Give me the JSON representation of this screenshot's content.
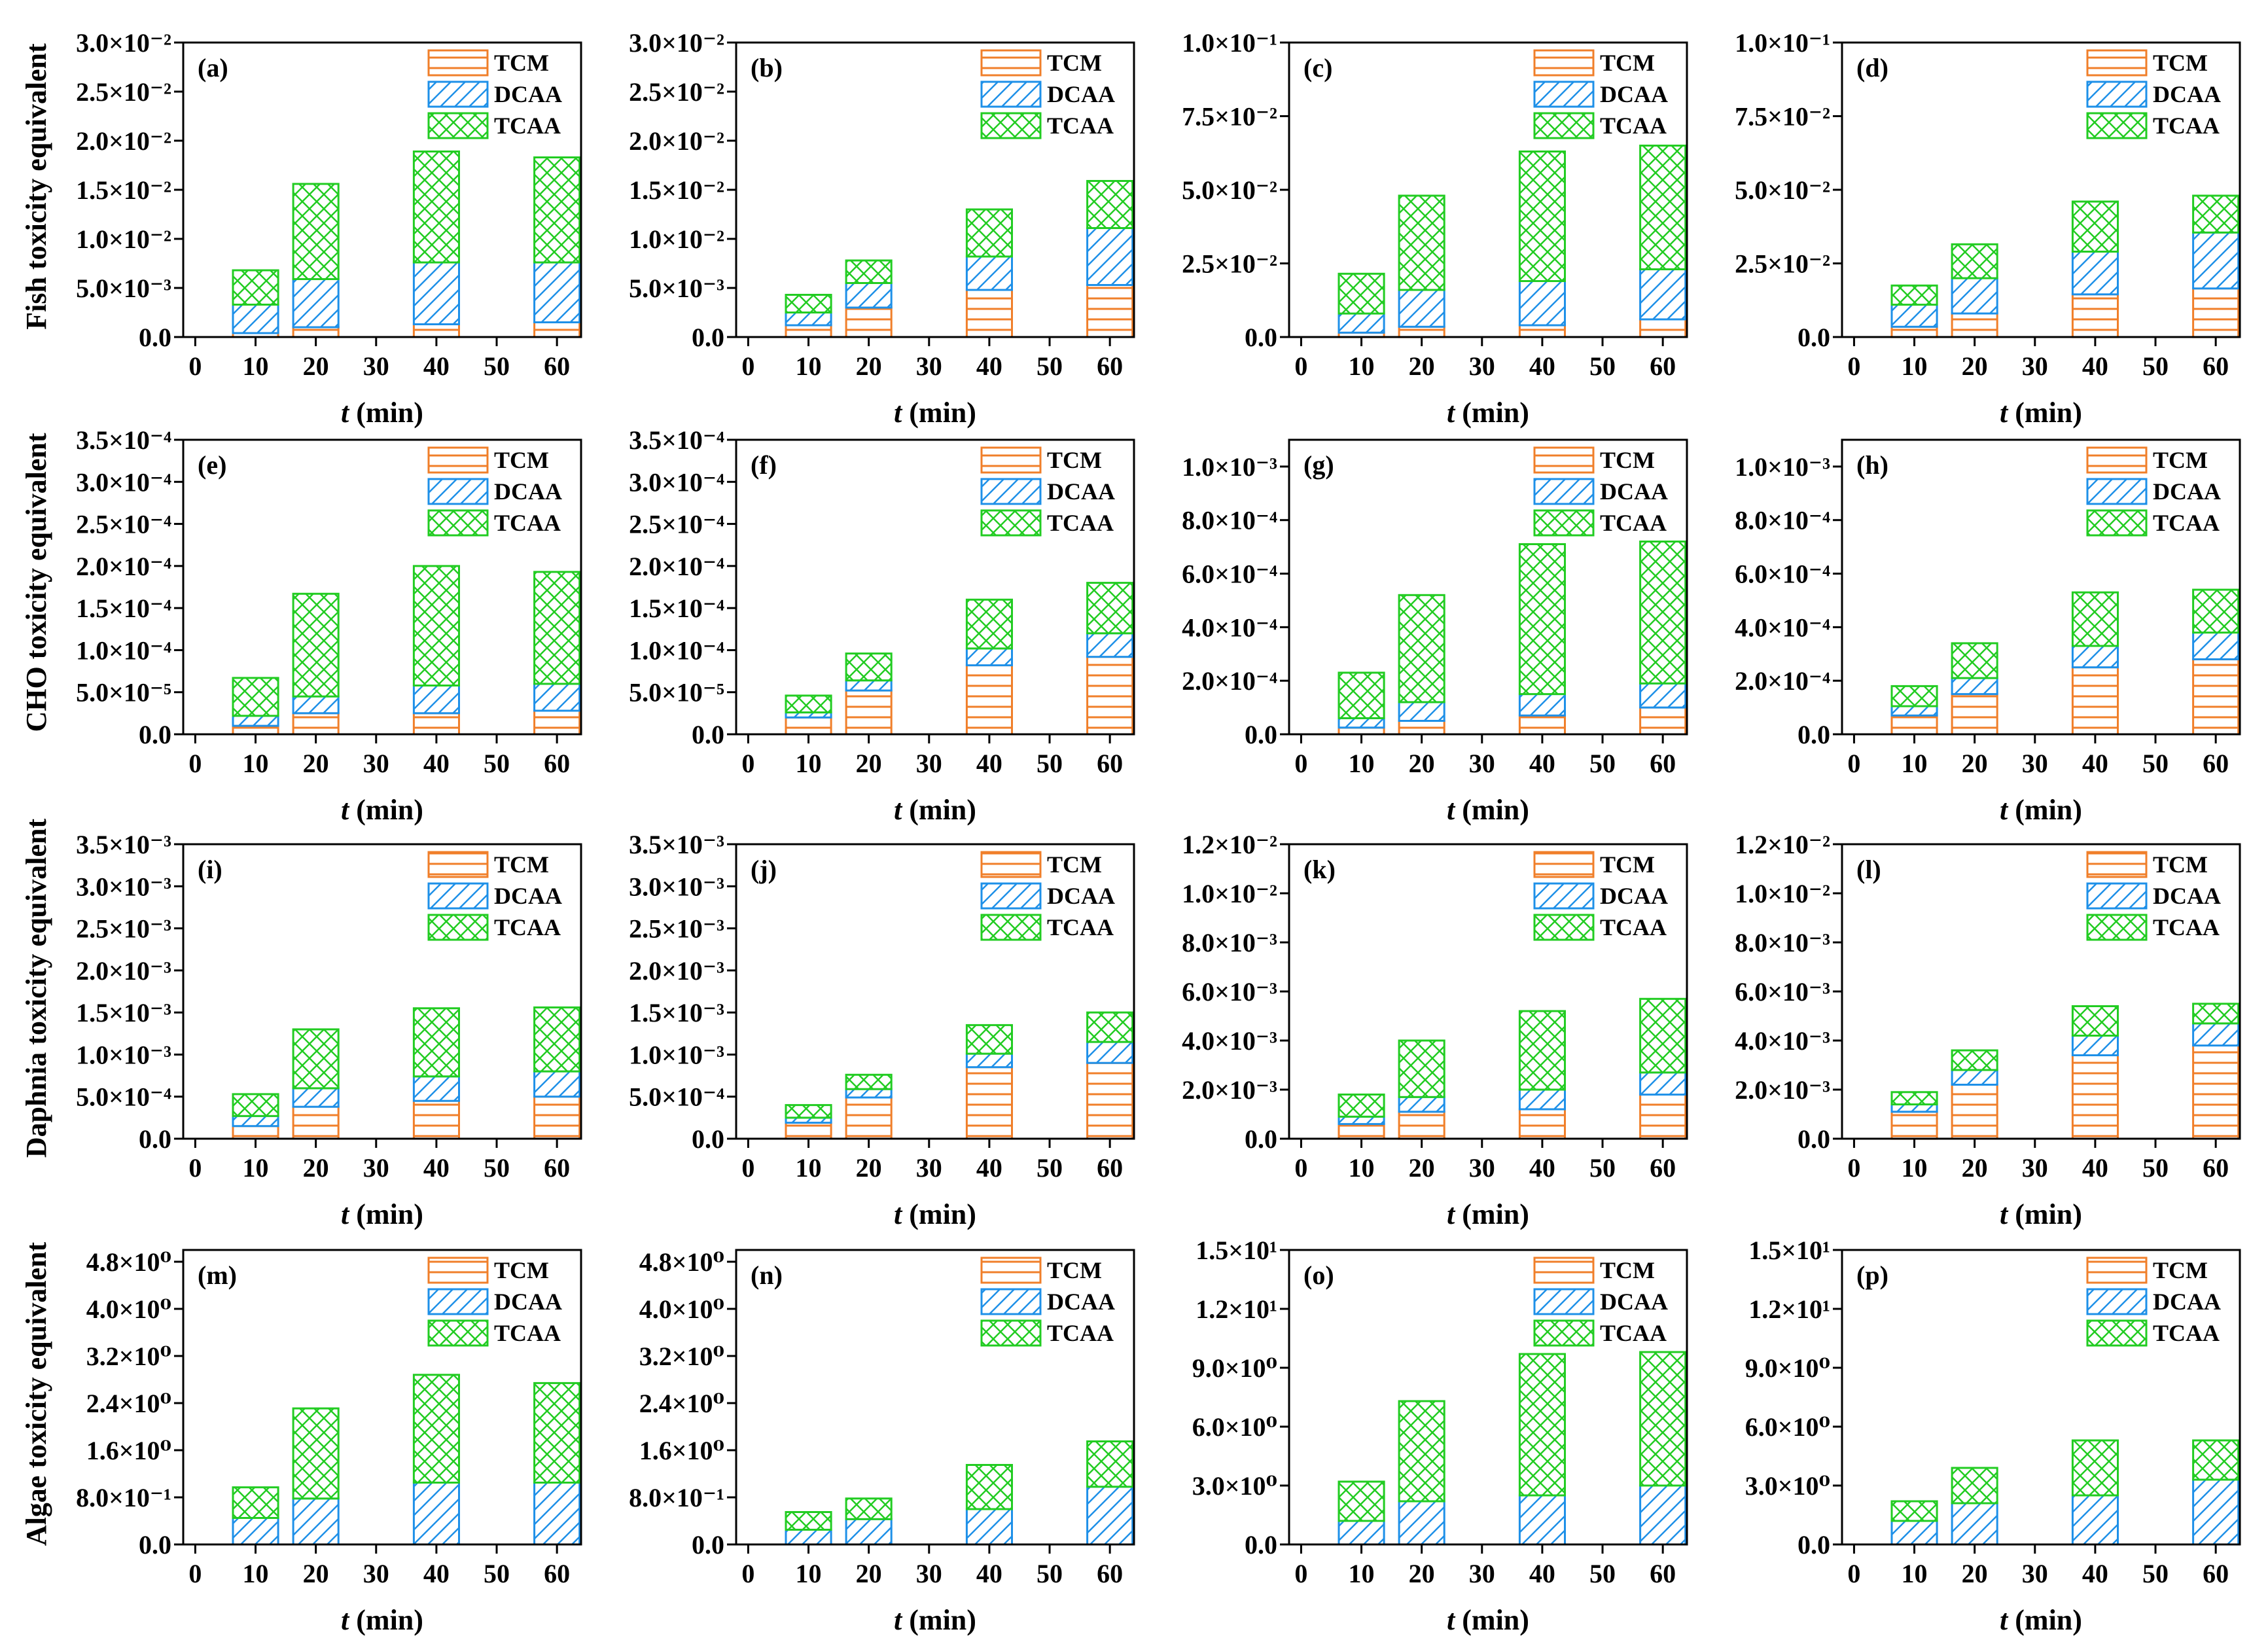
{
  "figure": {
    "row_titles": [
      "Fish toxicity equivalent",
      "CHO toxicity equivalent",
      "Daphnia toxicity equivalent",
      "Algae toxicity equivalent"
    ],
    "x_axis_label_italic": "t",
    "x_axis_label_unit": " (min)",
    "legend_labels": [
      "TCM",
      "DCAA",
      "TCAA"
    ]
  },
  "colors": {
    "tcm": "#f07f2a",
    "dcaa": "#1e90e8",
    "tcaa": "#22cc22",
    "axis": "#000000"
  },
  "chart_data": [
    {
      "panel": "(a)",
      "type": "bar",
      "stacked": true,
      "x": [
        10,
        20,
        40,
        60
      ],
      "xticks": [
        0,
        10,
        20,
        30,
        40,
        50,
        60
      ],
      "xlim": [
        -2,
        64
      ],
      "ylim": [
        0,
        0.03
      ],
      "yticks": [
        0,
        0.005,
        0.01,
        0.015,
        0.02,
        0.025,
        0.03
      ],
      "ytick_labels": [
        "0.0",
        "5.0×10⁻³",
        "1.0×10⁻²",
        "1.5×10⁻²",
        "2.0×10⁻²",
        "2.5×10⁻²",
        "3.0×10⁻²"
      ],
      "series": [
        {
          "name": "TCM",
          "values": [
            0.0004,
            0.001,
            0.0013,
            0.0015
          ]
        },
        {
          "name": "DCAA",
          "values": [
            0.0029,
            0.0049,
            0.0063,
            0.0061
          ]
        },
        {
          "name": "TCAA",
          "values": [
            0.0035,
            0.0097,
            0.0113,
            0.0107
          ]
        }
      ]
    },
    {
      "panel": "(b)",
      "type": "bar",
      "stacked": true,
      "x": [
        10,
        20,
        40,
        60
      ],
      "xticks": [
        0,
        10,
        20,
        30,
        40,
        50,
        60
      ],
      "xlim": [
        -2,
        64
      ],
      "ylim": [
        0,
        0.03
      ],
      "yticks": [
        0,
        0.005,
        0.01,
        0.015,
        0.02,
        0.025,
        0.03
      ],
      "ytick_labels": [
        "0.0",
        "5.0×10⁻³",
        "1.0×10⁻²",
        "1.5×10⁻²",
        "2.0×10⁻²",
        "2.5×10⁻²",
        "3.0×10⁻²"
      ],
      "series": [
        {
          "name": "TCM",
          "values": [
            0.0012,
            0.003,
            0.0048,
            0.0053
          ]
        },
        {
          "name": "DCAA",
          "values": [
            0.0013,
            0.0025,
            0.0034,
            0.0058
          ]
        },
        {
          "name": "TCAA",
          "values": [
            0.0018,
            0.0023,
            0.0048,
            0.0048
          ]
        }
      ]
    },
    {
      "panel": "(c)",
      "type": "bar",
      "stacked": true,
      "x": [
        10,
        20,
        40,
        60
      ],
      "xticks": [
        0,
        10,
        20,
        30,
        40,
        50,
        60
      ],
      "xlim": [
        -2,
        64
      ],
      "ylim": [
        0,
        0.1
      ],
      "yticks": [
        0,
        0.025,
        0.05,
        0.075,
        0.1
      ],
      "ytick_labels": [
        "0.0",
        "2.5×10⁻²",
        "5.0×10⁻²",
        "7.5×10⁻²",
        "1.0×10⁻¹"
      ],
      "series": [
        {
          "name": "TCM",
          "values": [
            0.0015,
            0.0035,
            0.004,
            0.006
          ]
        },
        {
          "name": "DCAA",
          "values": [
            0.0065,
            0.0125,
            0.015,
            0.017
          ]
        },
        {
          "name": "TCAA",
          "values": [
            0.0135,
            0.032,
            0.044,
            0.042
          ]
        }
      ]
    },
    {
      "panel": "(d)",
      "type": "bar",
      "stacked": true,
      "x": [
        10,
        20,
        40,
        60
      ],
      "xticks": [
        0,
        10,
        20,
        30,
        40,
        50,
        60
      ],
      "xlim": [
        -2,
        64
      ],
      "ylim": [
        0,
        0.1
      ],
      "yticks": [
        0,
        0.025,
        0.05,
        0.075,
        0.1
      ],
      "ytick_labels": [
        "0.0",
        "2.5×10⁻²",
        "5.0×10⁻²",
        "7.5×10⁻²",
        "1.0×10⁻¹"
      ],
      "series": [
        {
          "name": "TCM",
          "values": [
            0.0035,
            0.008,
            0.0145,
            0.0165
          ]
        },
        {
          "name": "DCAA",
          "values": [
            0.0075,
            0.012,
            0.0145,
            0.019
          ]
        },
        {
          "name": "TCAA",
          "values": [
            0.0065,
            0.0115,
            0.017,
            0.0125
          ]
        }
      ]
    },
    {
      "panel": "(e)",
      "type": "bar",
      "stacked": true,
      "x": [
        10,
        20,
        40,
        60
      ],
      "xticks": [
        0,
        10,
        20,
        30,
        40,
        50,
        60
      ],
      "xlim": [
        -2,
        64
      ],
      "ylim": [
        0,
        0.00035
      ],
      "yticks": [
        0,
        5e-05,
        0.0001,
        0.00015,
        0.0002,
        0.00025,
        0.0003,
        0.00035
      ],
      "ytick_labels": [
        "0.0",
        "5.0×10⁻⁵",
        "1.0×10⁻⁴",
        "1.5×10⁻⁴",
        "2.0×10⁻⁴",
        "2.5×10⁻⁴",
        "3.0×10⁻⁴",
        "3.5×10⁻⁴"
      ],
      "series": [
        {
          "name": "TCM",
          "values": [
            1e-05,
            2.5e-05,
            2.5e-05,
            2.8e-05
          ]
        },
        {
          "name": "DCAA",
          "values": [
            1.2e-05,
            2e-05,
            3.3e-05,
            3.2e-05
          ]
        },
        {
          "name": "TCAA",
          "values": [
            4.5e-05,
            0.000122,
            0.000142,
            0.000133
          ]
        }
      ]
    },
    {
      "panel": "(f)",
      "type": "bar",
      "stacked": true,
      "x": [
        10,
        20,
        40,
        60
      ],
      "xticks": [
        0,
        10,
        20,
        30,
        40,
        50,
        60
      ],
      "xlim": [
        -2,
        64
      ],
      "ylim": [
        0,
        0.00035
      ],
      "yticks": [
        0,
        5e-05,
        0.0001,
        0.00015,
        0.0002,
        0.00025,
        0.0003,
        0.00035
      ],
      "ytick_labels": [
        "0.0",
        "5.0×10⁻⁵",
        "1.0×10⁻⁴",
        "1.5×10⁻⁴",
        "2.0×10⁻⁴",
        "2.5×10⁻⁴",
        "3.0×10⁻⁴",
        "3.5×10⁻⁴"
      ],
      "series": [
        {
          "name": "TCM",
          "values": [
            2e-05,
            5.2e-05,
            8.2e-05,
            9.2e-05
          ]
        },
        {
          "name": "DCAA",
          "values": [
            6e-06,
            1.2e-05,
            2e-05,
            2.8e-05
          ]
        },
        {
          "name": "TCAA",
          "values": [
            2e-05,
            3.2e-05,
            5.8e-05,
            6e-05
          ]
        }
      ]
    },
    {
      "panel": "(g)",
      "type": "bar",
      "stacked": true,
      "x": [
        10,
        20,
        40,
        60
      ],
      "xticks": [
        0,
        10,
        20,
        30,
        40,
        50,
        60
      ],
      "xlim": [
        -2,
        64
      ],
      "ylim": [
        0,
        0.0011
      ],
      "yticks": [
        0,
        0.0002,
        0.0004,
        0.0006,
        0.0008,
        0.001
      ],
      "ytick_labels": [
        "0.0",
        "2.0×10⁻⁴",
        "4.0×10⁻⁴",
        "6.0×10⁻⁴",
        "8.0×10⁻⁴",
        "1.0×10⁻³"
      ],
      "series": [
        {
          "name": "TCM",
          "values": [
            2.5e-05,
            5e-05,
            7e-05,
            0.0001
          ]
        },
        {
          "name": "DCAA",
          "values": [
            3.5e-05,
            7e-05,
            8e-05,
            9e-05
          ]
        },
        {
          "name": "TCAA",
          "values": [
            0.00017,
            0.0004,
            0.00056,
            0.00053
          ]
        }
      ]
    },
    {
      "panel": "(h)",
      "type": "bar",
      "stacked": true,
      "x": [
        10,
        20,
        40,
        60
      ],
      "xticks": [
        0,
        10,
        20,
        30,
        40,
        50,
        60
      ],
      "xlim": [
        -2,
        64
      ],
      "ylim": [
        0,
        0.0011
      ],
      "yticks": [
        0,
        0.0002,
        0.0004,
        0.0006,
        0.0008,
        0.001
      ],
      "ytick_labels": [
        "0.0",
        "2.0×10⁻⁴",
        "4.0×10⁻⁴",
        "6.0×10⁻⁴",
        "8.0×10⁻⁴",
        "1.0×10⁻³"
      ],
      "series": [
        {
          "name": "TCM",
          "values": [
            7e-05,
            0.00015,
            0.00025,
            0.00028
          ]
        },
        {
          "name": "DCAA",
          "values": [
            3.5e-05,
            6e-05,
            8e-05,
            0.0001
          ]
        },
        {
          "name": "TCAA",
          "values": [
            7.5e-05,
            0.00013,
            0.0002,
            0.00016
          ]
        }
      ]
    },
    {
      "panel": "(i)",
      "type": "bar",
      "stacked": true,
      "x": [
        10,
        20,
        40,
        60
      ],
      "xticks": [
        0,
        10,
        20,
        30,
        40,
        50,
        60
      ],
      "xlim": [
        -2,
        64
      ],
      "ylim": [
        0,
        0.0035
      ],
      "yticks": [
        0,
        0.0005,
        0.001,
        0.0015,
        0.002,
        0.0025,
        0.003,
        0.0035
      ],
      "ytick_labels": [
        "0.0",
        "5.0×10⁻⁴",
        "1.0×10⁻³",
        "1.5×10⁻³",
        "2.0×10⁻³",
        "2.5×10⁻³",
        "3.0×10⁻³",
        "3.5×10⁻³"
      ],
      "series": [
        {
          "name": "TCM",
          "values": [
            0.00015,
            0.00038,
            0.00045,
            0.0005
          ]
        },
        {
          "name": "DCAA",
          "values": [
            0.00012,
            0.00022,
            0.00029,
            0.0003
          ]
        },
        {
          "name": "TCAA",
          "values": [
            0.00026,
            0.0007,
            0.00081,
            0.00076
          ]
        }
      ]
    },
    {
      "panel": "(j)",
      "type": "bar",
      "stacked": true,
      "x": [
        10,
        20,
        40,
        60
      ],
      "xticks": [
        0,
        10,
        20,
        30,
        40,
        50,
        60
      ],
      "xlim": [
        -2,
        64
      ],
      "ylim": [
        0,
        0.0035
      ],
      "yticks": [
        0,
        0.0005,
        0.001,
        0.0015,
        0.002,
        0.0025,
        0.003,
        0.0035
      ],
      "ytick_labels": [
        "0.0",
        "5.0×10⁻⁴",
        "1.0×10⁻³",
        "1.5×10⁻³",
        "2.0×10⁻³",
        "2.5×10⁻³",
        "3.0×10⁻³",
        "3.5×10⁻³"
      ],
      "series": [
        {
          "name": "TCM",
          "values": [
            0.00019,
            0.00049,
            0.00085,
            0.0009
          ]
        },
        {
          "name": "DCAA",
          "values": [
            6e-05,
            0.0001,
            0.00016,
            0.00025
          ]
        },
        {
          "name": "TCAA",
          "values": [
            0.00015,
            0.00017,
            0.00034,
            0.00035
          ]
        }
      ]
    },
    {
      "panel": "(k)",
      "type": "bar",
      "stacked": true,
      "x": [
        10,
        20,
        40,
        60
      ],
      "xticks": [
        0,
        10,
        20,
        30,
        40,
        50,
        60
      ],
      "xlim": [
        -2,
        64
      ],
      "ylim": [
        0,
        0.012
      ],
      "yticks": [
        0,
        0.002,
        0.004,
        0.006,
        0.008,
        0.01,
        0.012
      ],
      "ytick_labels": [
        "0.0",
        "2.0×10⁻³",
        "4.0×10⁻³",
        "6.0×10⁻³",
        "8.0×10⁻³",
        "1.0×10⁻²",
        "1.2×10⁻²"
      ],
      "series": [
        {
          "name": "TCM",
          "values": [
            0.0006,
            0.0011,
            0.0012,
            0.0018
          ]
        },
        {
          "name": "DCAA",
          "values": [
            0.0003,
            0.0006,
            0.0008,
            0.0009
          ]
        },
        {
          "name": "TCAA",
          "values": [
            0.0009,
            0.0023,
            0.0032,
            0.003
          ]
        }
      ]
    },
    {
      "panel": "(l)",
      "type": "bar",
      "stacked": true,
      "x": [
        10,
        20,
        40,
        60
      ],
      "xticks": [
        0,
        10,
        20,
        30,
        40,
        50,
        60
      ],
      "xlim": [
        -2,
        64
      ],
      "ylim": [
        0,
        0.012
      ],
      "yticks": [
        0,
        0.002,
        0.004,
        0.006,
        0.008,
        0.01,
        0.012
      ],
      "ytick_labels": [
        "0.0",
        "2.0×10⁻³",
        "4.0×10⁻³",
        "6.0×10⁻³",
        "8.0×10⁻³",
        "1.0×10⁻²",
        "1.2×10⁻²"
      ],
      "series": [
        {
          "name": "TCM",
          "values": [
            0.0011,
            0.0022,
            0.0034,
            0.0038
          ]
        },
        {
          "name": "DCAA",
          "values": [
            0.0003,
            0.0006,
            0.0008,
            0.0009
          ]
        },
        {
          "name": "TCAA",
          "values": [
            0.0005,
            0.0008,
            0.0012,
            0.0008
          ]
        }
      ]
    },
    {
      "panel": "(m)",
      "type": "bar",
      "stacked": true,
      "x": [
        10,
        20,
        40,
        60
      ],
      "xticks": [
        0,
        10,
        20,
        30,
        40,
        50,
        60
      ],
      "xlim": [
        -2,
        64
      ],
      "ylim": [
        0,
        5.0
      ],
      "yticks": [
        0,
        0.8,
        1.6,
        2.4,
        3.2,
        4.0,
        4.8
      ],
      "ytick_labels": [
        "0.0",
        "8.0×10⁻¹",
        "1.6×10⁰",
        "2.4×10⁰",
        "3.2×10⁰",
        "4.0×10⁰",
        "4.8×10⁰"
      ],
      "series": [
        {
          "name": "TCM",
          "values": [
            0,
            0,
            0,
            0
          ]
        },
        {
          "name": "DCAA",
          "values": [
            0.45,
            0.78,
            1.05,
            1.05
          ]
        },
        {
          "name": "TCAA",
          "values": [
            0.52,
            1.53,
            1.83,
            1.69
          ]
        }
      ]
    },
    {
      "panel": "(n)",
      "type": "bar",
      "stacked": true,
      "x": [
        10,
        20,
        40,
        60
      ],
      "xticks": [
        0,
        10,
        20,
        30,
        40,
        50,
        60
      ],
      "xlim": [
        -2,
        64
      ],
      "ylim": [
        0,
        5.0
      ],
      "yticks": [
        0,
        0.8,
        1.6,
        2.4,
        3.2,
        4.0,
        4.8
      ],
      "ytick_labels": [
        "0.0",
        "8.0×10⁻¹",
        "1.6×10⁰",
        "2.4×10⁰",
        "3.2×10⁰",
        "4.0×10⁰",
        "4.8×10⁰"
      ],
      "series": [
        {
          "name": "TCM",
          "values": [
            0,
            0,
            0,
            0
          ]
        },
        {
          "name": "DCAA",
          "values": [
            0.25,
            0.43,
            0.6,
            0.98
          ]
        },
        {
          "name": "TCAA",
          "values": [
            0.3,
            0.35,
            0.75,
            0.77
          ]
        }
      ]
    },
    {
      "panel": "(o)",
      "type": "bar",
      "stacked": true,
      "x": [
        10,
        20,
        40,
        60
      ],
      "xticks": [
        0,
        10,
        20,
        30,
        40,
        50,
        60
      ],
      "xlim": [
        -2,
        64
      ],
      "ylim": [
        0,
        15
      ],
      "yticks": [
        0,
        3,
        6,
        9,
        12,
        15
      ],
      "ytick_labels": [
        "0.0",
        "3.0×10⁰",
        "6.0×10⁰",
        "9.0×10⁰",
        "1.2×10¹",
        "1.5×10¹"
      ],
      "series": [
        {
          "name": "TCM",
          "values": [
            0,
            0,
            0,
            0
          ]
        },
        {
          "name": "DCAA",
          "values": [
            1.2,
            2.2,
            2.5,
            3.0
          ]
        },
        {
          "name": "TCAA",
          "values": [
            2.0,
            5.1,
            7.2,
            6.8
          ]
        }
      ]
    },
    {
      "panel": "(p)",
      "type": "bar",
      "stacked": true,
      "x": [
        10,
        20,
        40,
        60
      ],
      "xticks": [
        0,
        10,
        20,
        30,
        40,
        50,
        60
      ],
      "xlim": [
        -2,
        64
      ],
      "ylim": [
        0,
        15
      ],
      "yticks": [
        0,
        3,
        6,
        9,
        12,
        15
      ],
      "ytick_labels": [
        "0.0",
        "3.0×10⁰",
        "6.0×10⁰",
        "9.0×10⁰",
        "1.2×10¹",
        "1.5×10¹"
      ],
      "series": [
        {
          "name": "TCM",
          "values": [
            0,
            0,
            0,
            0
          ]
        },
        {
          "name": "DCAA",
          "values": [
            1.2,
            2.1,
            2.5,
            3.3
          ]
        },
        {
          "name": "TCAA",
          "values": [
            1.0,
            1.8,
            2.8,
            2.0
          ]
        }
      ]
    }
  ]
}
